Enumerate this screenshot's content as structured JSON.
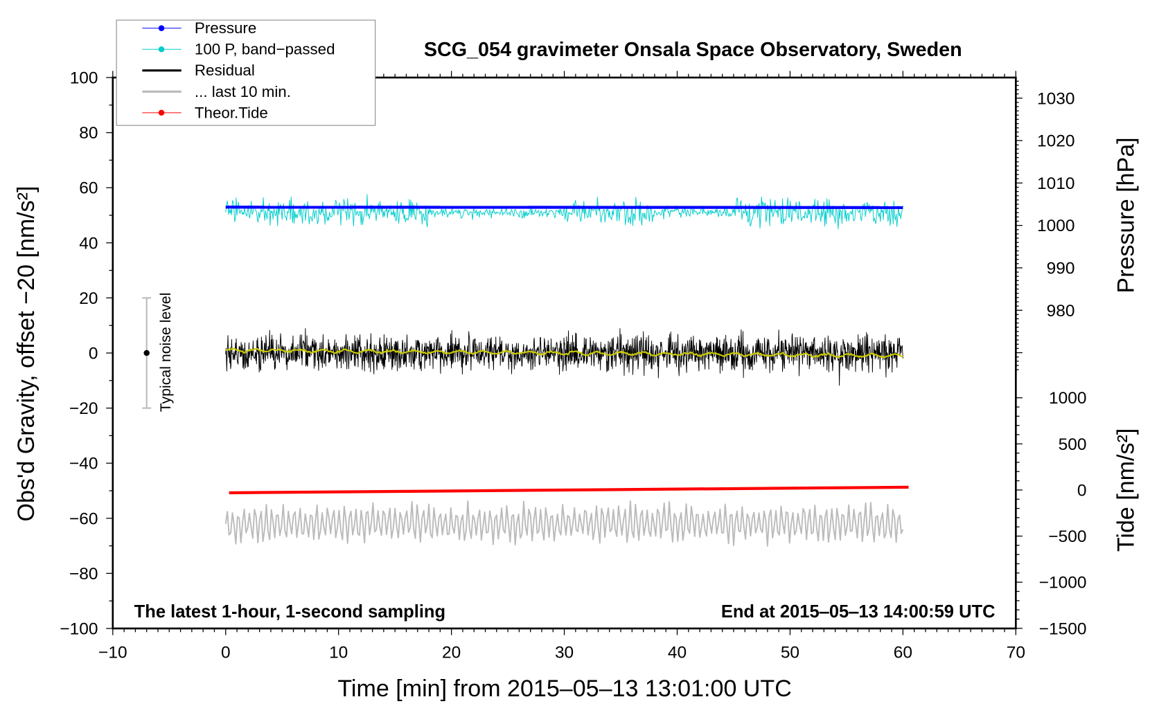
{
  "chart_data": {
    "type": "line",
    "title": "SCG_054 gravimeter Onsala Space Observatory, Sweden",
    "xlabel": "Time [min] from 2015‒05‒13 13:01:00 UTC",
    "ylabel": "Obs'd Gravity, offset −20 [nm/s²]",
    "ylabel_pressure": "Pressure [hPa]",
    "ylabel_tide": "Tide [nm/s²]",
    "xlim": [
      -10,
      70
    ],
    "ylim": [
      -100,
      100
    ],
    "pressure_lim_visible": [
      980,
      1030
    ],
    "tide_lim": [
      -1500,
      1000
    ],
    "x_ticks": [
      "−10",
      "0",
      "10",
      "20",
      "30",
      "40",
      "50",
      "60",
      "70"
    ],
    "x_tick_values": [
      -10,
      0,
      10,
      20,
      30,
      40,
      50,
      60,
      70
    ],
    "y_ticks": [
      "100",
      "80",
      "60",
      "40",
      "20",
      "0",
      "−20",
      "−40",
      "−60",
      "−80",
      "−100"
    ],
    "y_tick_values": [
      100,
      80,
      60,
      40,
      20,
      0,
      -20,
      -40,
      -60,
      -80,
      -100
    ],
    "pressure_ticks": [
      "1030",
      "1020",
      "1010",
      "1000",
      "990",
      "980"
    ],
    "pressure_tick_values": [
      1030,
      1020,
      1010,
      1000,
      990,
      980
    ],
    "tide_ticks": [
      "1000",
      "500",
      "0",
      "−500",
      "−1000",
      "−1500"
    ],
    "tide_tick_values": [
      1000,
      500,
      0,
      -500,
      -1000,
      -1500
    ],
    "legend": {
      "placement": "top-left",
      "entries": [
        {
          "label": "Pressure",
          "color": "#0000ff",
          "marker": true
        },
        {
          "label": "100 P, band−passed",
          "color": "#00cccc",
          "marker": true
        },
        {
          "label": "Residual",
          "color": "#000000",
          "marker": false
        },
        {
          "label": "... last 10 min.",
          "color": "#bbbbbb",
          "marker": false
        },
        {
          "label": "Theor.Tide",
          "color": "#ff0000",
          "marker": true
        }
      ]
    },
    "series": [
      {
        "name": "Pressure",
        "color": "#0000ff",
        "axis": "pressure",
        "x_range": [
          0,
          60
        ],
        "value_hPa": 1004.3
      },
      {
        "name": "100 P, band-passed",
        "color": "#00cccc",
        "axis": "gravity",
        "x_range": [
          0,
          60
        ],
        "mean": 51,
        "amplitude": 4
      },
      {
        "name": "Residual",
        "color": "#000000",
        "axis": "gravity",
        "x_range": [
          0,
          60
        ],
        "mean": 0,
        "amplitude": 6
      },
      {
        "name": "Residual smoothed",
        "color": "#cccc00",
        "axis": "gravity",
        "x_range": [
          0,
          60
        ],
        "start": 1,
        "end": -1
      },
      {
        "name": "... last 10 min.",
        "color": "#bbbbbb",
        "axis": "gravity",
        "x_range": [
          0,
          60
        ],
        "mean": -62,
        "amplitude": 7
      },
      {
        "name": "Theor.Tide",
        "color": "#ff0000",
        "axis": "tide",
        "x_range": [
          0,
          60
        ],
        "start": -30,
        "end": 30
      }
    ],
    "noise_bar": {
      "label": "Typical noise level",
      "x": -7,
      "range": [
        -20,
        20
      ],
      "center": 0
    },
    "annotations": {
      "left": "The latest 1‑hour, 1‑second sampling",
      "right": "End at 2015‒05‒13 14:00:59 UTC"
    }
  }
}
